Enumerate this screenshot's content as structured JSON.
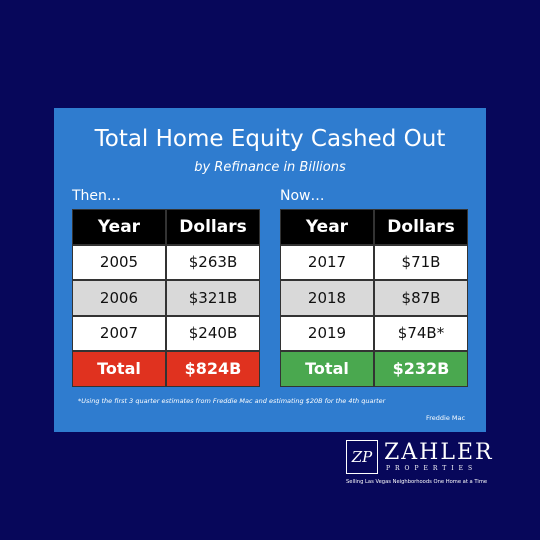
{
  "title": "Total Home Equity Cashed Out",
  "subtitle": "by Refinance in Billions",
  "tables": [
    {
      "label": "Then…",
      "header": [
        "Year",
        "Dollars"
      ],
      "rows": [
        [
          "2005",
          "$263B"
        ],
        [
          "2006",
          "$321B"
        ],
        [
          "2007",
          "$240B"
        ]
      ],
      "total": [
        "Total",
        "$824B"
      ],
      "total_color": "#e0321f"
    },
    {
      "label": "Now…",
      "header": [
        "Year",
        "Dollars"
      ],
      "rows": [
        [
          "2017",
          "$71B"
        ],
        [
          "2018",
          "$87B"
        ],
        [
          "2019",
          "$74B*"
        ]
      ],
      "total": [
        "Total",
        "$232B"
      ],
      "total_color": "#4aa84f"
    }
  ],
  "footnote": "*Using the first 3 quarter estimates from Freddie Mac and estimating $20B for the 4th quarter",
  "source": "Freddie Mac",
  "logo": {
    "mark": "ZP",
    "name": "ZAHLER",
    "subname": "PROPERTIES",
    "tagline": "Selling Las Vegas Neighborhoods One Home at a Time"
  }
}
